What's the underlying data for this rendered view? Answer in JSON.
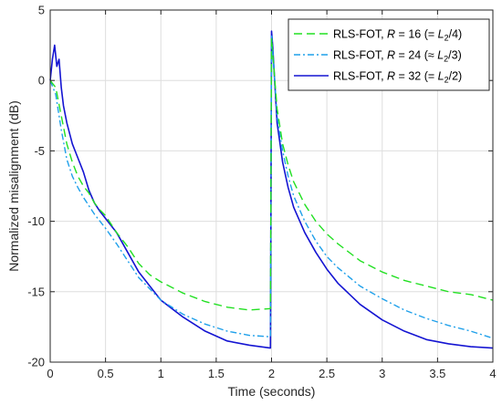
{
  "chart_data": {
    "type": "line",
    "title": "",
    "xlabel": "Time (seconds)",
    "ylabel": "Normalized misalignment (dB)",
    "xlim": [
      0,
      4
    ],
    "ylim": [
      -20,
      5
    ],
    "xticks": [
      0,
      0.5,
      1,
      1.5,
      2,
      2.5,
      3,
      3.5,
      4
    ],
    "xtick_labels": [
      "0",
      "0.5",
      "1",
      "1.5",
      "2",
      "2.5",
      "3",
      "3.5",
      "4"
    ],
    "yticks": [
      -20,
      -15,
      -10,
      -5,
      0,
      5
    ],
    "ytick_labels": [
      "-20",
      "-15",
      "-10",
      "-5",
      "0",
      "5"
    ],
    "grid": true,
    "legend_position": "top-right",
    "series": [
      {
        "name": "RLS-FOT, R = 16 (= L2/4)",
        "legend_parts": [
          {
            "t": "RLS-FOT, ",
            "style": "normal"
          },
          {
            "t": "R",
            "style": "italic"
          },
          {
            "t": " = 16 (= ",
            "style": "normal"
          },
          {
            "t": "L",
            "style": "italic"
          },
          {
            "t": "2",
            "style": "sub"
          },
          {
            "t": "/4)",
            "style": "normal"
          }
        ],
        "color": "#22e022",
        "dash": "9,5",
        "x": [
          0,
          0.05,
          0.1,
          0.15,
          0.2,
          0.25,
          0.3,
          0.35,
          0.4,
          0.45,
          0.5,
          0.6,
          0.7,
          0.8,
          0.9,
          1.0,
          1.2,
          1.4,
          1.6,
          1.8,
          1.99,
          2.0,
          2.01,
          2.05,
          2.1,
          2.15,
          2.2,
          2.3,
          2.4,
          2.5,
          2.6,
          2.8,
          3.0,
          3.2,
          3.4,
          3.6,
          3.8,
          4.0
        ],
        "y": [
          0,
          -0.5,
          -2.5,
          -4.5,
          -5.8,
          -6.8,
          -7.5,
          -8.0,
          -8.7,
          -9.2,
          -9.6,
          -10.8,
          -11.8,
          -13.0,
          -13.8,
          -14.3,
          -15.1,
          -15.7,
          -16.1,
          -16.3,
          -16.2,
          3.0,
          2.0,
          -2.0,
          -4.5,
          -6.0,
          -7.2,
          -8.8,
          -10.0,
          -10.9,
          -11.6,
          -12.8,
          -13.6,
          -14.2,
          -14.6,
          -15.0,
          -15.2,
          -15.6
        ]
      },
      {
        "name": "RLS-FOT, R = 24 (≈ L2/3)",
        "legend_parts": [
          {
            "t": "RLS-FOT, ",
            "style": "normal"
          },
          {
            "t": "R",
            "style": "italic"
          },
          {
            "t": " = 24 (≈ ",
            "style": "normal"
          },
          {
            "t": "L",
            "style": "italic"
          },
          {
            "t": "2",
            "style": "sub"
          },
          {
            "t": "/3)",
            "style": "normal"
          }
        ],
        "color": "#1fa0ea",
        "dash": "7,3,2,3",
        "x": [
          0,
          0.05,
          0.1,
          0.15,
          0.2,
          0.25,
          0.3,
          0.35,
          0.4,
          0.45,
          0.5,
          0.6,
          0.7,
          0.8,
          0.9,
          1.0,
          1.2,
          1.4,
          1.6,
          1.8,
          1.99,
          2.0,
          2.01,
          2.05,
          2.1,
          2.15,
          2.2,
          2.3,
          2.4,
          2.5,
          2.6,
          2.8,
          3.0,
          3.2,
          3.4,
          3.6,
          3.8,
          4.0
        ],
        "y": [
          0,
          -1.0,
          -3.5,
          -5.6,
          -6.8,
          -7.6,
          -8.3,
          -8.9,
          -9.5,
          -10.0,
          -10.5,
          -11.6,
          -12.8,
          -14.0,
          -14.8,
          -15.6,
          -16.6,
          -17.3,
          -17.8,
          -18.1,
          -18.2,
          3.2,
          2.2,
          -2.5,
          -5.0,
          -6.8,
          -8.2,
          -10.0,
          -11.4,
          -12.5,
          -13.3,
          -14.6,
          -15.5,
          -16.3,
          -16.9,
          -17.4,
          -17.8,
          -18.3
        ]
      },
      {
        "name": "RLS-FOT, R = 32 (= L2/2)",
        "legend_parts": [
          {
            "t": "RLS-FOT, ",
            "style": "normal"
          },
          {
            "t": "R",
            "style": "italic"
          },
          {
            "t": " = 32 (= ",
            "style": "normal"
          },
          {
            "t": "L",
            "style": "italic"
          },
          {
            "t": "2",
            "style": "sub"
          },
          {
            "t": "/2)",
            "style": "normal"
          }
        ],
        "color": "#1414d2",
        "dash": "",
        "x": [
          0,
          0.02,
          0.04,
          0.06,
          0.08,
          0.1,
          0.12,
          0.15,
          0.2,
          0.25,
          0.3,
          0.35,
          0.4,
          0.45,
          0.5,
          0.55,
          0.6,
          0.7,
          0.8,
          0.9,
          1.0,
          1.2,
          1.4,
          1.6,
          1.8,
          1.99,
          2.0,
          2.01,
          2.05,
          2.1,
          2.15,
          2.2,
          2.3,
          2.4,
          2.5,
          2.6,
          2.8,
          3.0,
          3.2,
          3.4,
          3.6,
          3.8,
          4.0
        ],
        "y": [
          0,
          1.5,
          2.5,
          1.0,
          1.5,
          -0.5,
          -1.8,
          -3.0,
          -4.5,
          -5.5,
          -6.5,
          -7.8,
          -8.7,
          -9.3,
          -9.8,
          -10.3,
          -10.8,
          -12.2,
          -13.6,
          -14.6,
          -15.6,
          -16.8,
          -17.8,
          -18.5,
          -18.8,
          -19.0,
          3.5,
          2.5,
          -3.0,
          -5.8,
          -7.6,
          -9.0,
          -10.8,
          -12.2,
          -13.4,
          -14.4,
          -15.9,
          -17.0,
          -17.8,
          -18.4,
          -18.7,
          -18.9,
          -19.0
        ]
      }
    ]
  }
}
